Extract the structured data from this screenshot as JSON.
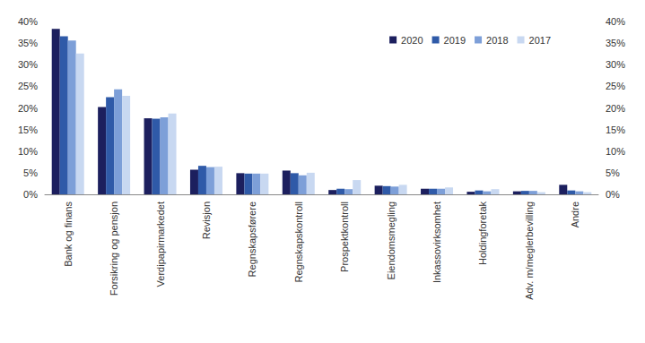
{
  "chart_data": {
    "type": "bar",
    "categories": [
      "Bank og finans",
      "Forsikring og pensjon",
      "Verdipapirmarkedet",
      "Revisjon",
      "Regnskapsførere",
      "Regnskapskontroll",
      "Prospektkontroll",
      "Eiendomsmegling",
      "Inkassovirksomhet",
      "Holdingforetak",
      "Adv. m/meglerbevilling",
      "Andre"
    ],
    "series": [
      {
        "name": "2020",
        "color": "#1c1f5e",
        "values": [
          38.3,
          20.2,
          17.6,
          5.7,
          4.9,
          5.5,
          1.0,
          2.0,
          1.3,
          0.6,
          0.7,
          2.2
        ]
      },
      {
        "name": "2019",
        "color": "#2f5aa8",
        "values": [
          36.6,
          22.5,
          17.5,
          6.6,
          4.8,
          4.9,
          1.3,
          1.9,
          1.3,
          0.9,
          0.8,
          0.9
        ]
      },
      {
        "name": "2018",
        "color": "#7d9fd8",
        "values": [
          35.6,
          24.3,
          17.8,
          6.3,
          4.8,
          4.4,
          1.2,
          1.8,
          1.3,
          0.7,
          0.8,
          0.7
        ]
      },
      {
        "name": "2017",
        "color": "#c8d8f1",
        "values": [
          32.6,
          22.8,
          18.7,
          6.4,
          4.8,
          5.0,
          3.3,
          2.2,
          1.6,
          1.2,
          0.5,
          0.5
        ]
      }
    ],
    "ylim": [
      0,
      40
    ],
    "yticks": [
      {
        "value": 0,
        "label": "0%"
      },
      {
        "value": 5,
        "label": "5%"
      },
      {
        "value": 10,
        "label": "10%"
      },
      {
        "value": 15,
        "label": "15%"
      },
      {
        "value": 20,
        "label": "20%"
      },
      {
        "value": 25,
        "label": "25%"
      },
      {
        "value": 30,
        "label": "30%"
      },
      {
        "value": 35,
        "label": "35%"
      },
      {
        "value": 40,
        "label": "40%"
      }
    ],
    "y2lim": [
      0,
      40
    ],
    "y2ticks": [
      {
        "value": 0,
        "label": "0%"
      },
      {
        "value": 5,
        "label": "5%"
      },
      {
        "value": 10,
        "label": "10%"
      },
      {
        "value": 15,
        "label": "15%"
      },
      {
        "value": 20,
        "label": "20%"
      },
      {
        "value": 25,
        "label": "25%"
      },
      {
        "value": 30,
        "label": "30%"
      },
      {
        "value": 35,
        "label": "35%"
      },
      {
        "value": 40,
        "label": "40%"
      }
    ],
    "legend": "upper right",
    "grid": false
  }
}
